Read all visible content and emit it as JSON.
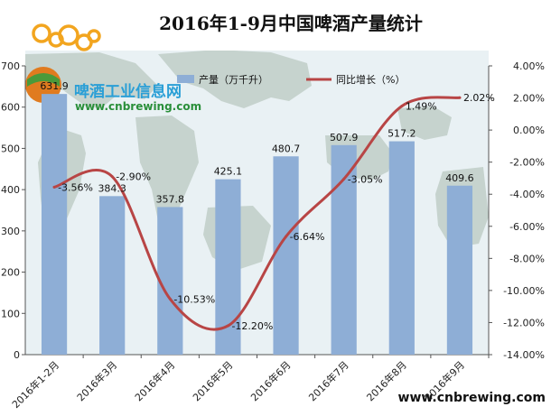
{
  "watermark": {
    "name": "啤酒工业信息网",
    "url": "www.cnbrewing.com"
  },
  "footer_url": "www.cnbrewing.com",
  "colors": {
    "bar": "#8eaed6",
    "line": "#b84545",
    "map_land": "#9cb0a0",
    "map_sea": "#e9f1f4"
  },
  "chart_data": {
    "type": "bar",
    "title": "2016年1-9月中国啤酒产量统计",
    "categories": [
      "2016年1-2月",
      "2016年3月",
      "2016年4月",
      "2016年5月",
      "2016年6月",
      "2016年7月",
      "2016年8月",
      "2016年9月"
    ],
    "y_left": {
      "min": 0,
      "max": 700,
      "step": 100,
      "ticks": [
        "0",
        "100",
        "200",
        "300",
        "400",
        "500",
        "600",
        "700"
      ]
    },
    "y_right": {
      "min": -14,
      "max": 4,
      "step": 2,
      "ticks": [
        "-14.00%",
        "-12.00%",
        "-10.00%",
        "-8.00%",
        "-6.00%",
        "-4.00%",
        "-2.00%",
        "0.00%",
        "2.00%",
        "4.00%"
      ]
    },
    "series": [
      {
        "name": "产量（万千升）",
        "type": "bar",
        "axis": "left",
        "values": [
          631.9,
          384.3,
          357.8,
          425.1,
          480.7,
          507.9,
          517.2,
          409.6
        ],
        "labels": [
          "631.9",
          "384.3",
          "357.8",
          "425.1",
          "480.7",
          "507.9",
          "517.2",
          "409.6"
        ]
      },
      {
        "name": "同比增长（%）",
        "type": "line",
        "axis": "right",
        "values": [
          -3.56,
          -2.9,
          -10.53,
          -12.2,
          -6.64,
          -3.05,
          1.49,
          2.02
        ],
        "labels": [
          "-3.56%",
          "-2.90%",
          "-10.53%",
          "-12.20%",
          "-6.64%",
          "-3.05%",
          "1.49%",
          "2.02%"
        ]
      }
    ],
    "legend": "top",
    "grid": false
  }
}
